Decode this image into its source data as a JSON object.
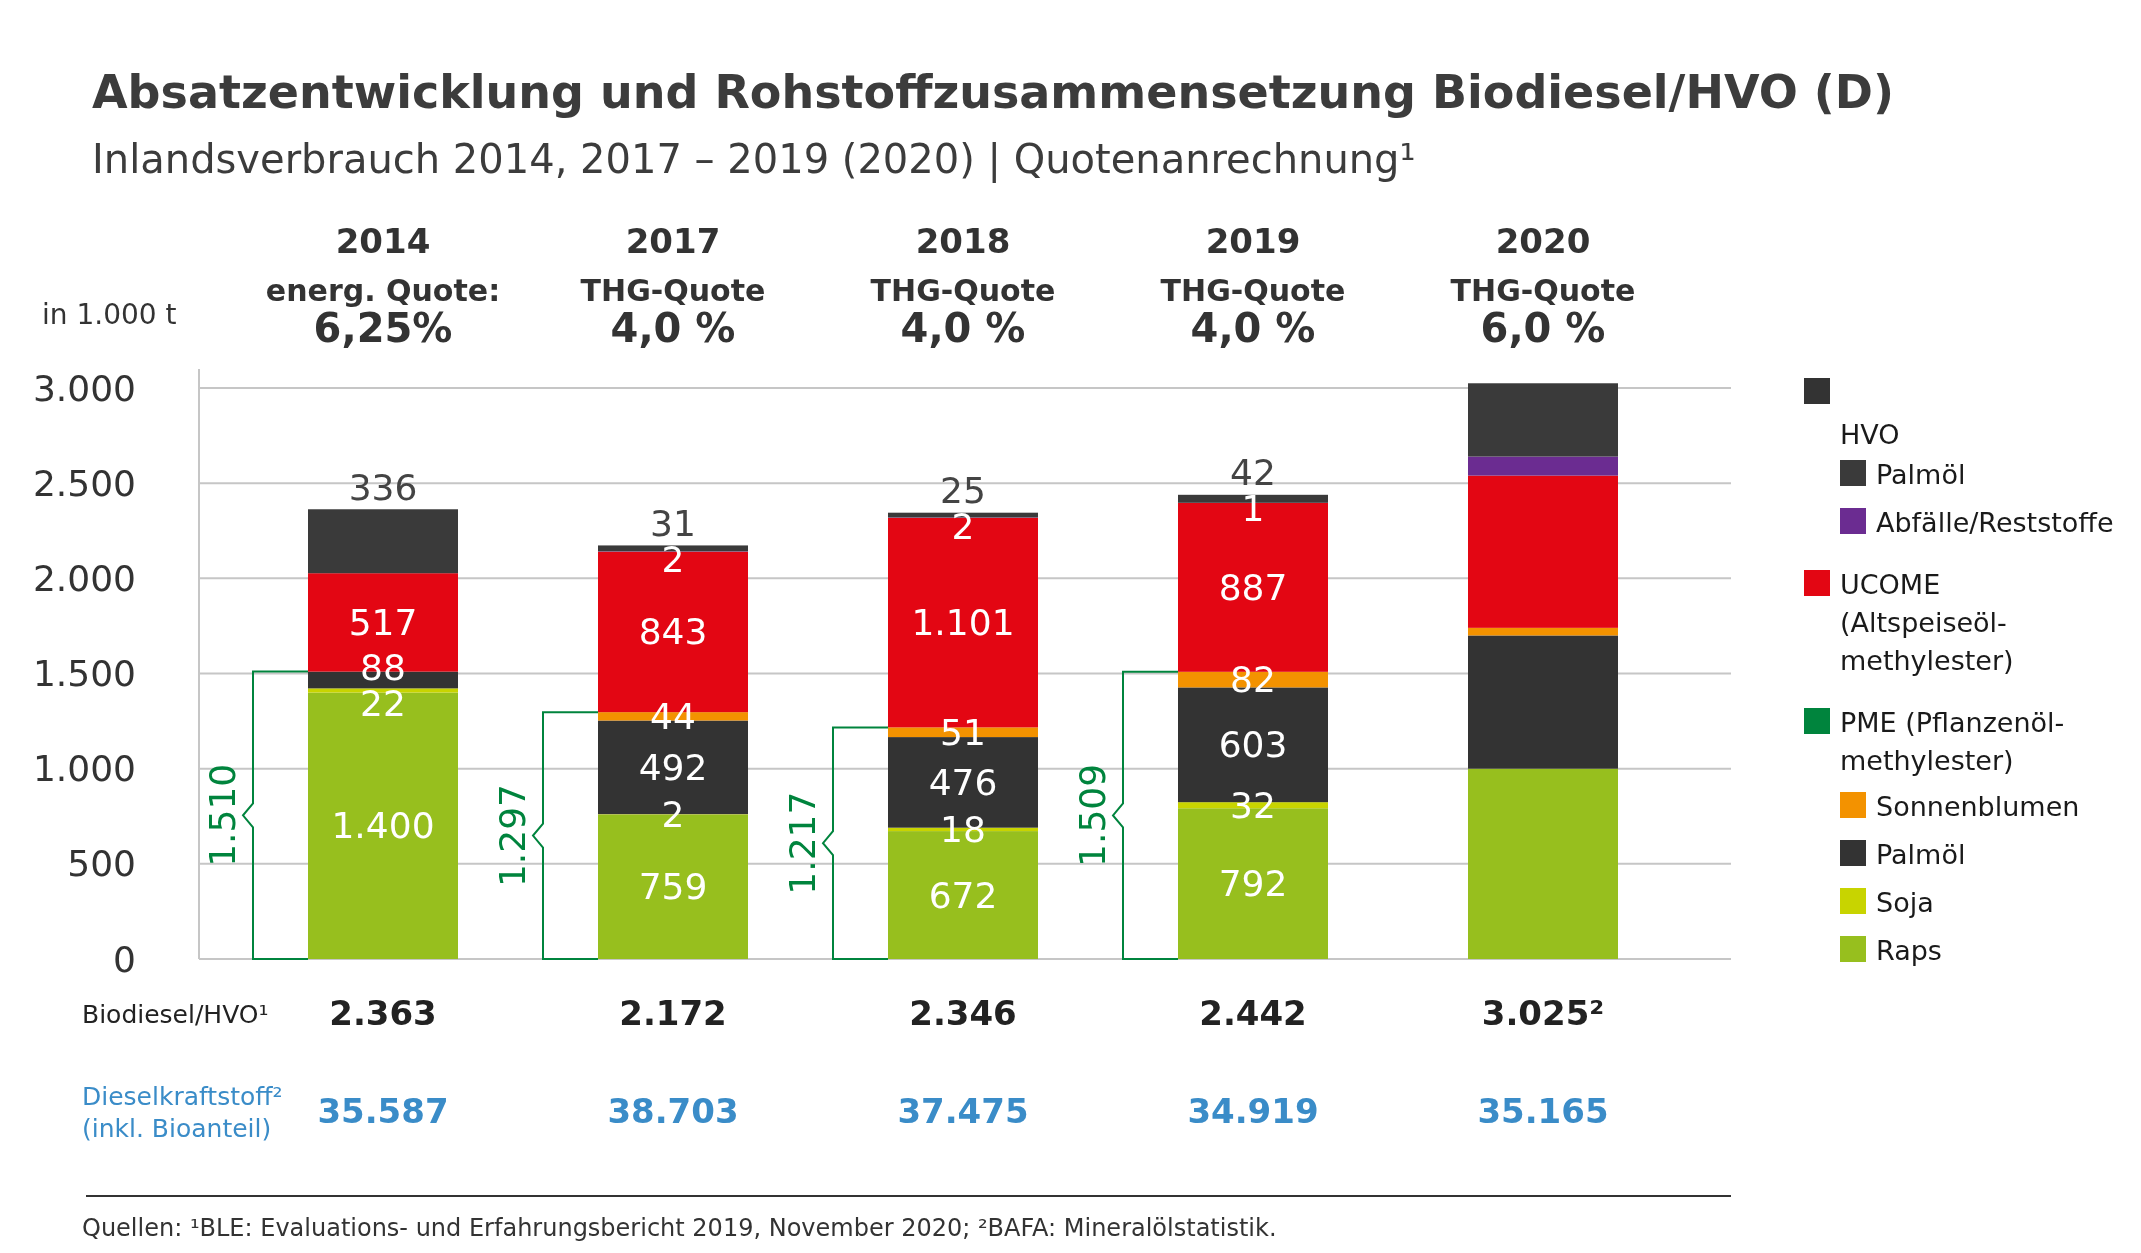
{
  "chart_data": {
    "type": "bar",
    "stacked": true,
    "title": "Absatzentwicklung und Rohstoffzusammensetzung Biodiesel/HVO (D)",
    "subtitle": "Inlandsverbrauch 2014, 2017 – 2019 (2020) | Quotenanrechnung¹",
    "ylabel": "in 1.000 t",
    "categories": [
      "2014",
      "2017",
      "2018",
      "2019",
      "2020"
    ],
    "series": [
      {
        "name": "Raps",
        "color": "#97bf1e",
        "values": [
          1400,
          759,
          672,
          792,
          1000
        ],
        "value_labels": [
          "1.400",
          "759",
          "672",
          "792",
          null
        ]
      },
      {
        "name": "Soja",
        "color": "#c8d400",
        "values": [
          22,
          2,
          18,
          32,
          null
        ],
        "value_labels": [
          "22",
          "2",
          "18",
          "32",
          null
        ]
      },
      {
        "name": "Palmöl",
        "color": "#333333",
        "values": [
          88,
          492,
          476,
          603,
          700
        ],
        "value_labels": [
          "88",
          "492",
          "476",
          "603",
          null
        ]
      },
      {
        "name": "Sonnenblumen",
        "color": "#f39200",
        "values": [
          null,
          44,
          51,
          82,
          40
        ],
        "value_labels": [
          null,
          "44",
          "51",
          "82",
          null
        ]
      },
      {
        "name": "UCOME (Altspeiseöl-methylester)",
        "color": "#e30613",
        "values": [
          517,
          843,
          1101,
          887,
          800
        ],
        "value_labels": [
          "517",
          "843",
          "1.101",
          "887",
          null
        ]
      },
      {
        "name": "Abfälle/Reststoffe",
        "color": "#6b2c91",
        "values": [
          null,
          2,
          2,
          1,
          100
        ],
        "value_labels": [
          null,
          "2",
          "2",
          "1",
          null
        ]
      },
      {
        "name": "Palmöl",
        "color": "#3a3a3a",
        "values": [
          336,
          31,
          25,
          42,
          385
        ],
        "value_labels": [
          "336",
          "31",
          "25",
          "42",
          null
        ]
      }
    ],
    "totals": [
      "2.363",
      "2.172",
      "2.346",
      "2.442",
      "3.025²"
    ],
    "ylim": [
      0,
      3100
    ],
    "yticks": [
      {
        "value": 0,
        "label": "0"
      },
      {
        "value": 500,
        "label": "500"
      },
      {
        "value": 1000,
        "label": "1.000"
      },
      {
        "value": 1500,
        "label": "1.500"
      },
      {
        "value": 2000,
        "label": "2.000"
      },
      {
        "value": 2500,
        "label": "2.500"
      },
      {
        "value": 3000,
        "label": "3.000"
      }
    ],
    "grid": "y",
    "legend": "right",
    "annotations": [
      "energ. Quote:",
      "THG-Quote",
      "THG-Quote",
      "THG-Quote",
      "THG-Quote",
      "6,25%",
      "4,0 %",
      "4,0 %",
      "4,0 %",
      "6,0 %",
      "1.510",
      "1.297",
      "1.217",
      "1.509",
      "Biodiesel/HVO¹",
      "Dieselkraftstoff² (inkl. Bioanteil)",
      "35.587",
      "38.703",
      "37.475",
      "34.919",
      "35.165",
      "HVO",
      "PME (Pflanzenöl-methylester)",
      "Quellen: ¹BLE: Evaluations- und Erfahrungsbericht 2019, November 2020; ²BAFA: Mineralölstatistik."
    ]
  }
}
